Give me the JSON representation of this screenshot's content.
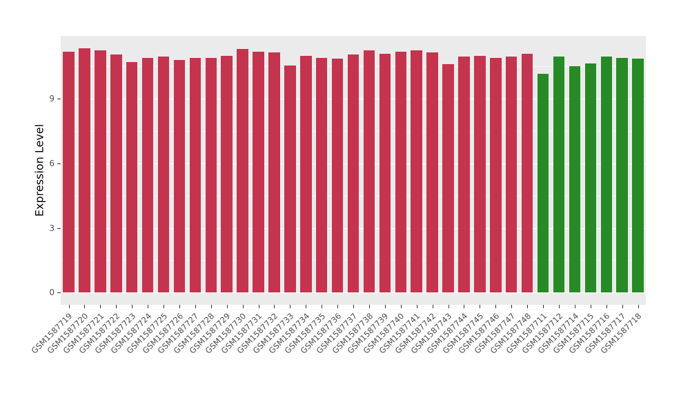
{
  "chart_data": {
    "type": "bar",
    "title": "",
    "xlabel": "",
    "ylabel": "Expression Level",
    "legend": "none",
    "categories": [
      "GSM1587719",
      "GSM1587720",
      "GSM1587721",
      "GSM1587722",
      "GSM1587723",
      "GSM1587724",
      "GSM1587725",
      "GSM1587726",
      "GSM1587727",
      "GSM1587728",
      "GSM1587729",
      "GSM1587730",
      "GSM1587731",
      "GSM1587732",
      "GSM1587733",
      "GSM1587734",
      "GSM1587735",
      "GSM1587736",
      "GSM1587737",
      "GSM1587738",
      "GSM1587739",
      "GSM1587740",
      "GSM1587741",
      "GSM1587742",
      "GSM1587743",
      "GSM1587744",
      "GSM1587745",
      "GSM1587746",
      "GSM1587747",
      "GSM1587748",
      "GSM1587711",
      "GSM1587712",
      "GSM1587714",
      "GSM1587715",
      "GSM1587716",
      "GSM1587717",
      "GSM1587718"
    ],
    "values": [
      11.2,
      11.35,
      11.25,
      11.05,
      10.7,
      10.9,
      10.95,
      10.8,
      10.9,
      10.9,
      11.0,
      11.3,
      11.2,
      11.15,
      10.55,
      11.0,
      10.9,
      10.85,
      11.05,
      11.25,
      11.1,
      11.2,
      11.25,
      11.15,
      10.6,
      10.95,
      11.0,
      10.9,
      10.95,
      11.1,
      10.15,
      10.95,
      10.5,
      10.65,
      10.95,
      10.9,
      10.85
    ],
    "groups": [
      "red",
      "red",
      "red",
      "red",
      "red",
      "red",
      "red",
      "red",
      "red",
      "red",
      "red",
      "red",
      "red",
      "red",
      "red",
      "red",
      "red",
      "red",
      "red",
      "red",
      "red",
      "red",
      "red",
      "red",
      "red",
      "red",
      "red",
      "red",
      "red",
      "red",
      "green",
      "green",
      "green",
      "green",
      "green",
      "green",
      "green"
    ],
    "group_colors": {
      "red": "#C5344E",
      "green": "#268B26"
    },
    "yticks": [
      0,
      3,
      6,
      9
    ],
    "ytick_labels": [
      "0",
      "3",
      "6",
      "9"
    ],
    "minor_yticks": [
      1.5,
      4.5,
      7.5,
      10.5
    ],
    "ylim": [
      -0.57,
      11.92
    ],
    "panel_background": "#EBEBEB",
    "grid_color": "#FFFFFF",
    "tick_text_color": "#4D4D4D"
  }
}
